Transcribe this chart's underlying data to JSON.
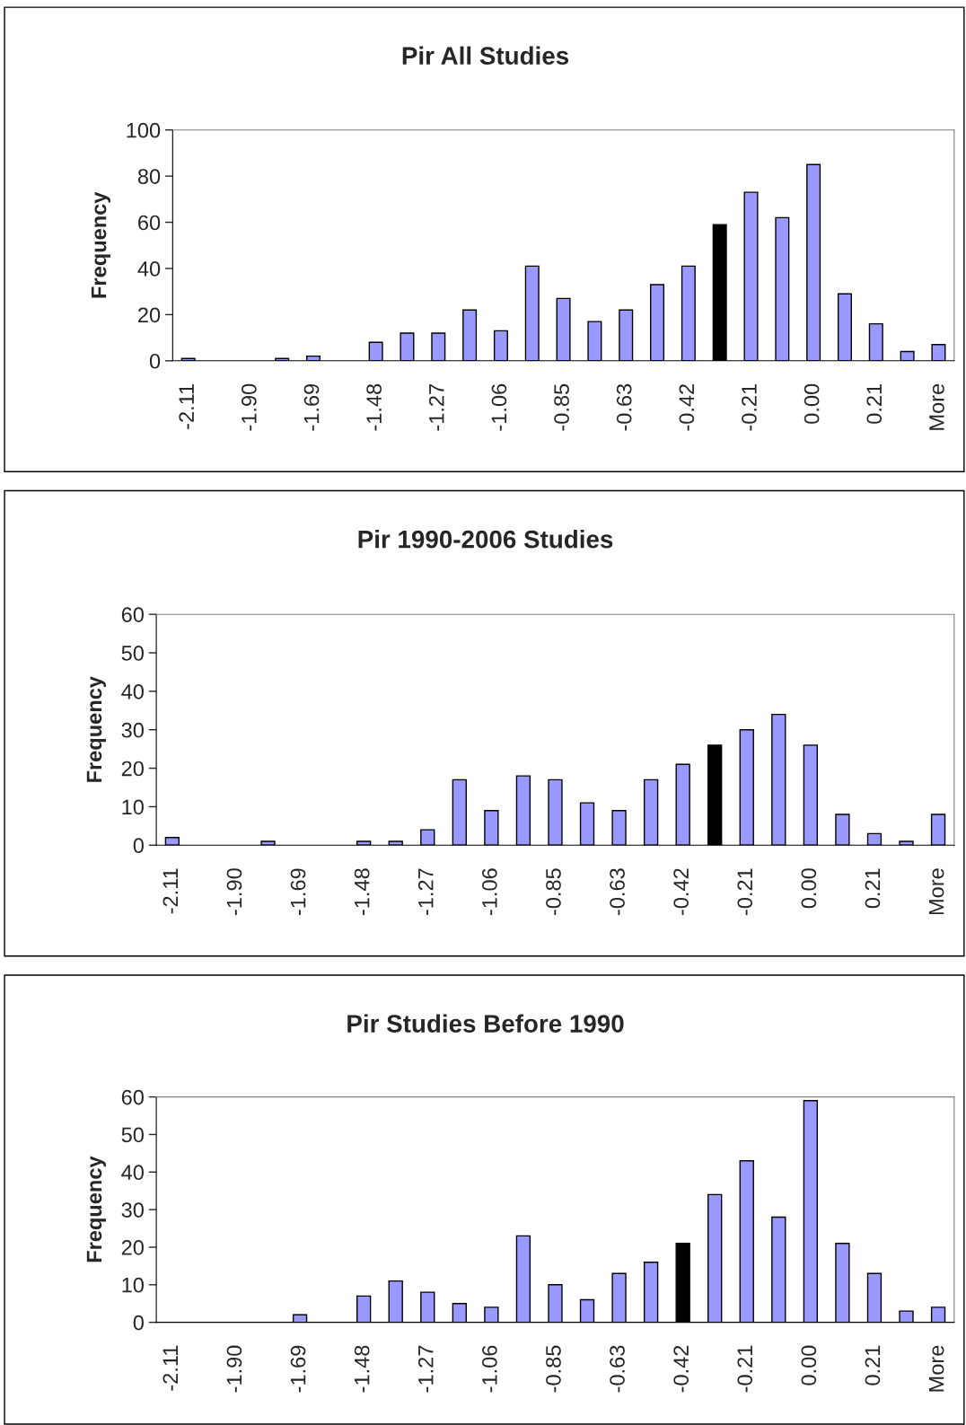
{
  "chart_data": [
    {
      "type": "bar",
      "title": "Pir All Studies",
      "ylabel": "Frequency",
      "categories": [
        "-2.11",
        null,
        "-1.90",
        null,
        "-1.69",
        null,
        "-1.48",
        null,
        "-1.27",
        null,
        "-1.06",
        null,
        "-0.85",
        null,
        "-0.63",
        null,
        "-0.42",
        null,
        "-0.21",
        null,
        "0.00",
        null,
        "0.21",
        null,
        "More"
      ],
      "values": [
        1,
        0,
        0,
        1,
        2,
        0,
        8,
        12,
        12,
        22,
        13,
        41,
        27,
        17,
        22,
        33,
        41,
        59,
        73,
        62,
        85,
        29,
        16,
        4,
        7
      ],
      "colors": [
        "#9999ff",
        "#9999ff",
        "#9999ff",
        "#9999ff",
        "#9999ff",
        "#9999ff",
        "#9999ff",
        "#9999ff",
        "#9999ff",
        "#9999ff",
        "#9999ff",
        "#9999ff",
        "#9999ff",
        "#9999ff",
        "#9999ff",
        "#9999ff",
        "#9999ff",
        "#000000",
        "#9999ff",
        "#9999ff",
        "#9999ff",
        "#9999ff",
        "#9999ff",
        "#9999ff",
        "#9999ff"
      ],
      "ylim": [
        0,
        100
      ],
      "yticks": [
        0,
        20,
        40,
        60,
        80,
        100
      ],
      "grid": false,
      "legend": false
    },
    {
      "type": "bar",
      "title": "Pir 1990-2006 Studies",
      "ylabel": "Frequency",
      "categories": [
        "-2.11",
        null,
        "-1.90",
        null,
        "-1.69",
        null,
        "-1.48",
        null,
        "-1.27",
        null,
        "-1.06",
        null,
        "-0.85",
        null,
        "-0.63",
        null,
        "-0.42",
        null,
        "-0.21",
        null,
        "0.00",
        null,
        "0.21",
        null,
        "More"
      ],
      "values": [
        2,
        0,
        0,
        1,
        0,
        0,
        1,
        1,
        4,
        17,
        9,
        18,
        17,
        11,
        9,
        17,
        21,
        26,
        30,
        34,
        26,
        8,
        3,
        1,
        8
      ],
      "colors": [
        "#9999ff",
        "#9999ff",
        "#9999ff",
        "#9999ff",
        "#9999ff",
        "#9999ff",
        "#9999ff",
        "#9999ff",
        "#9999ff",
        "#9999ff",
        "#9999ff",
        "#9999ff",
        "#9999ff",
        "#9999ff",
        "#9999ff",
        "#9999ff",
        "#9999ff",
        "#000000",
        "#9999ff",
        "#9999ff",
        "#9999ff",
        "#9999ff",
        "#9999ff",
        "#9999ff",
        "#9999ff"
      ],
      "ylim": [
        0,
        60
      ],
      "yticks": [
        0,
        10,
        20,
        30,
        40,
        50,
        60
      ],
      "grid": false,
      "legend": false
    },
    {
      "type": "bar",
      "title": "Pir Studies Before 1990",
      "ylabel": "Frequency",
      "categories": [
        "-2.11",
        null,
        "-1.90",
        null,
        "-1.69",
        null,
        "-1.48",
        null,
        "-1.27",
        null,
        "-1.06",
        null,
        "-0.85",
        null,
        "-0.63",
        null,
        "-0.42",
        null,
        "-0.21",
        null,
        "0.00",
        null,
        "0.21",
        null,
        "More"
      ],
      "values": [
        0,
        0,
        0,
        0,
        2,
        0,
        7,
        11,
        8,
        5,
        4,
        23,
        10,
        6,
        13,
        16,
        21,
        34,
        43,
        28,
        59,
        21,
        13,
        3,
        4
      ],
      "colors": [
        "#9999ff",
        "#9999ff",
        "#9999ff",
        "#9999ff",
        "#9999ff",
        "#9999ff",
        "#9999ff",
        "#9999ff",
        "#9999ff",
        "#9999ff",
        "#9999ff",
        "#9999ff",
        "#9999ff",
        "#9999ff",
        "#9999ff",
        "#9999ff",
        "#000000",
        "#9999ff",
        "#9999ff",
        "#9999ff",
        "#9999ff",
        "#9999ff",
        "#9999ff",
        "#9999ff",
        "#9999ff"
      ],
      "ylim": [
        0,
        60
      ],
      "yticks": [
        0,
        10,
        20,
        30,
        40,
        50,
        60
      ],
      "grid": false,
      "legend": false
    }
  ]
}
